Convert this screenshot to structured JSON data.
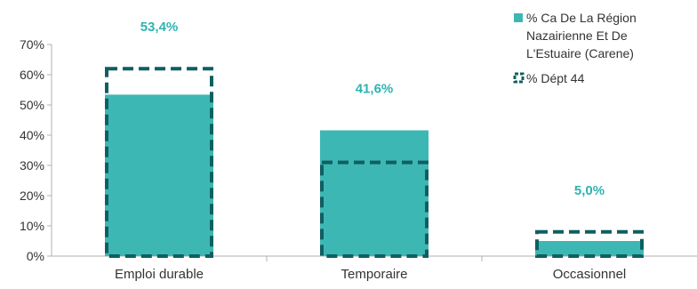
{
  "chart_data": {
    "type": "bar",
    "categories": [
      "Emploi durable",
      "Temporaire",
      "Occasionnel"
    ],
    "series": [
      {
        "name": "% Ca De La Région Nazairienne Et De L'Estuaire (Carene)",
        "values": [
          53.4,
          41.6,
          5.0
        ],
        "style": "filled",
        "color": "#3db7b4"
      },
      {
        "name": "% Dépt 44",
        "values": [
          62,
          31,
          8
        ],
        "style": "dashed-outline",
        "color": "#0f5f61"
      }
    ],
    "data_labels": [
      "53,4%",
      "41,6%",
      "5,0%"
    ],
    "data_label_color": "#2fb3b0",
    "y_ticks": [
      "0%",
      "10%",
      "20%",
      "30%",
      "40%",
      "50%",
      "60%",
      "70%"
    ],
    "ylim": [
      0,
      70
    ],
    "ystep": 10,
    "legend_position": "top-right",
    "legend_lines": [
      [
        "% Ca De La Région",
        "Nazairienne Et De",
        "L'Estuaire (Carene)"
      ],
      [
        "% Dépt 44"
      ]
    ],
    "grid": false,
    "xlabel": "",
    "ylabel": "",
    "title": ""
  }
}
